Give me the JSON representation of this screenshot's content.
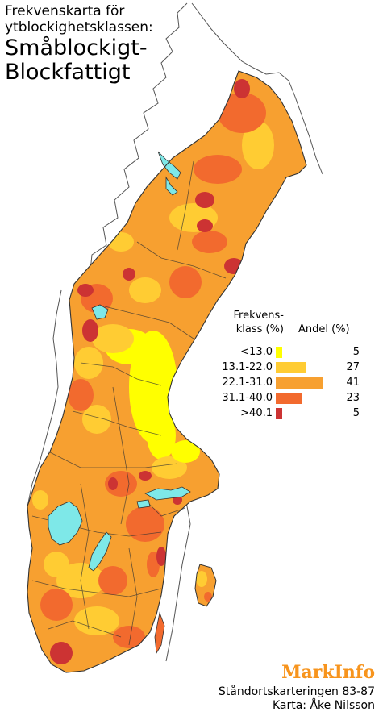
{
  "title": {
    "line1": "Frekvenskarta för",
    "line2": "ytblockighetsklassen:",
    "line3": "Småblockigt-",
    "line4": "Blockfattigt"
  },
  "legend": {
    "header_class_line1": "Frekvens-",
    "header_class_line2": "klass (%)",
    "header_share": "Andel (%)",
    "rows": [
      {
        "class": "<13.0",
        "share": "5",
        "share_value": 5,
        "color": "#ffff00"
      },
      {
        "class": "13.1-22.0",
        "share": "27",
        "share_value": 27,
        "color": "#ffcc33"
      },
      {
        "class": "22.1-31.0",
        "share": "41",
        "share_value": 41,
        "color": "#f7a030"
      },
      {
        "class": "31.1-40.0",
        "share": "23",
        "share_value": 23,
        "color": "#f26a2e"
      },
      {
        "class": ">40.1",
        "share": "5",
        "share_value": 5,
        "color": "#cc3333"
      }
    ]
  },
  "map_colors": {
    "lake": "#7ee8e8",
    "border": "#333333",
    "outline": "#555555"
  },
  "brand": "MarkInfo",
  "credit": {
    "line1": "Ståndortskarteringen 83-87",
    "line2": "Karta: Åke Nilsson"
  }
}
